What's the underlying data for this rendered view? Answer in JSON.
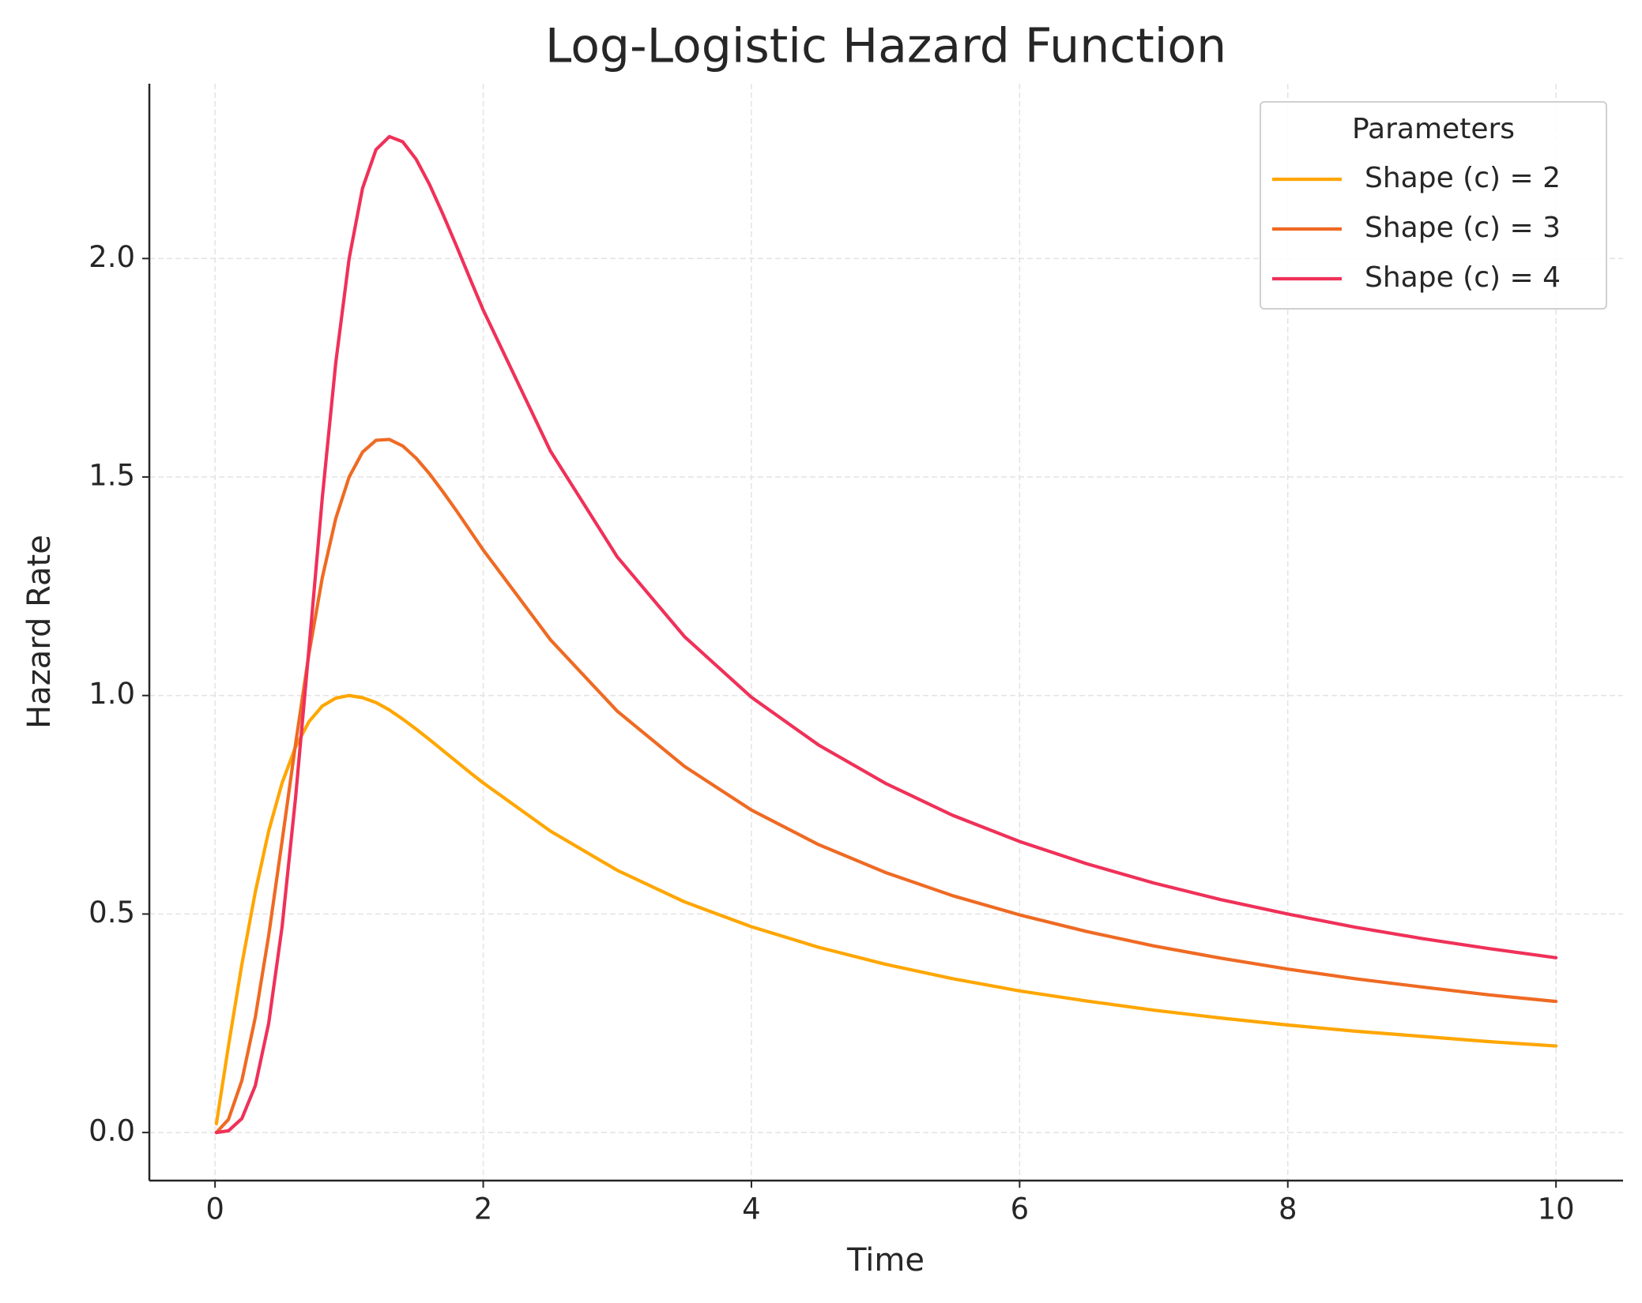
{
  "chart_data": {
    "type": "line",
    "title": "Log-Logistic Hazard Function",
    "x_label": "Time",
    "y_label": "Hazard Rate",
    "x": [
      0.01,
      0.1,
      0.2,
      0.3,
      0.4,
      0.5,
      0.6,
      0.7,
      0.8,
      0.9,
      1.0,
      1.1,
      1.2,
      1.3,
      1.4,
      1.5,
      1.6,
      1.7,
      1.8,
      1.9,
      2.0,
      2.5,
      3,
      3.5,
      4,
      4.5,
      5,
      5.5,
      6,
      6.5,
      7,
      7.5,
      8,
      8.5,
      9,
      9.5,
      10
    ],
    "series": [
      {
        "name": "Shape (c) = 2",
        "color": "#ffa600",
        "values": [
          0.02,
          0.198,
          0.385,
          0.55,
          0.69,
          0.8,
          0.882,
          0.94,
          0.976,
          0.994,
          1.0,
          0.995,
          0.984,
          0.967,
          0.946,
          0.923,
          0.899,
          0.874,
          0.849,
          0.824,
          0.8,
          0.69,
          0.6,
          0.528,
          0.471,
          0.424,
          0.385,
          0.352,
          0.324,
          0.301,
          0.28,
          0.262,
          0.246,
          0.232,
          0.22,
          0.208,
          0.198
        ]
      },
      {
        "name": "Shape (c) = 3",
        "color": "#ef6a23",
        "values": [
          0.0,
          0.03,
          0.119,
          0.263,
          0.451,
          0.667,
          0.888,
          1.095,
          1.27,
          1.405,
          1.5,
          1.557,
          1.584,
          1.586,
          1.571,
          1.543,
          1.507,
          1.466,
          1.423,
          1.378,
          1.333,
          1.128,
          0.964,
          0.838,
          0.738,
          0.659,
          0.595,
          0.542,
          0.498,
          0.46,
          0.427,
          0.399,
          0.374,
          0.352,
          0.333,
          0.315,
          0.3
        ]
      },
      {
        "name": "Shape (c) = 4",
        "color": "#ef3159",
        "values": [
          0.0,
          0.004,
          0.032,
          0.107,
          0.25,
          0.471,
          0.765,
          1.106,
          1.453,
          1.761,
          2.0,
          2.161,
          2.249,
          2.279,
          2.267,
          2.227,
          2.169,
          2.101,
          2.029,
          1.955,
          1.882,
          1.56,
          1.317,
          1.135,
          0.996,
          0.887,
          0.799,
          0.726,
          0.666,
          0.615,
          0.571,
          0.533,
          0.5,
          0.47,
          0.444,
          0.421,
          0.4
        ]
      }
    ],
    "xlim": [
      -0.49,
      10.5
    ],
    "ylim": [
      -0.11,
      2.4
    ],
    "xticks": [
      0,
      2,
      4,
      6,
      8,
      10
    ],
    "yticks": [
      {
        "value": 0,
        "label": "0.0"
      },
      0.5,
      {
        "value": 1,
        "label": "1.0"
      },
      1.5,
      {
        "value": 2,
        "label": "2.0"
      }
    ],
    "grid": true,
    "legend_title": "Parameters",
    "legend_loc": "upper right"
  }
}
